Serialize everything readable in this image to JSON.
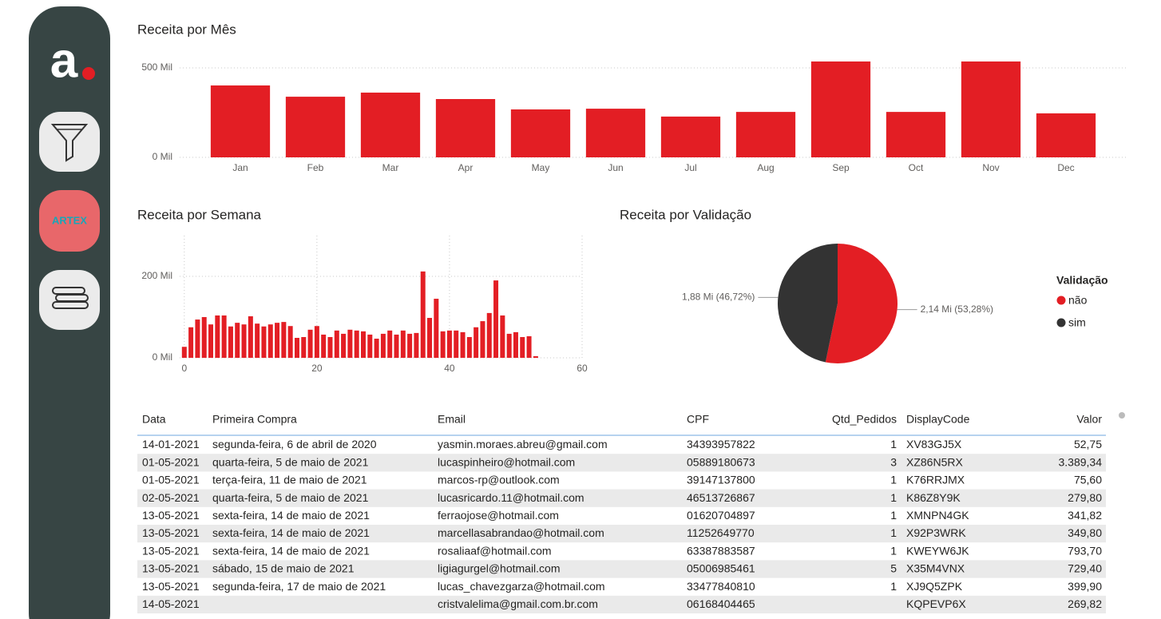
{
  "sidebar": {
    "logo": "a",
    "badge": "ARTEX"
  },
  "chart_data": [
    {
      "type": "bar",
      "title": "Receita por Mês",
      "color": "#e31e24",
      "grid": true,
      "categories": [
        "Jan",
        "Feb",
        "Mar",
        "Apr",
        "May",
        "Jun",
        "Jul",
        "Aug",
        "Sep",
        "Oct",
        "Nov",
        "Dec"
      ],
      "values": [
        402,
        339,
        362,
        326,
        268,
        272,
        228,
        254,
        536,
        254,
        536,
        246
      ],
      "ylim": [
        0,
        560
      ],
      "yticks": [
        {
          "value": 0,
          "label": "0 Mil"
        },
        {
          "value": 500,
          "label": "500 Mil"
        }
      ]
    },
    {
      "type": "bar",
      "title": "Receita por Semana",
      "color": "#e31e24",
      "grid": true,
      "x": [
        0,
        1,
        2,
        3,
        4,
        5,
        6,
        7,
        8,
        9,
        10,
        11,
        12,
        13,
        14,
        15,
        16,
        17,
        18,
        19,
        20,
        21,
        22,
        23,
        24,
        25,
        26,
        27,
        28,
        29,
        30,
        31,
        32,
        33,
        34,
        35,
        36,
        37,
        38,
        39,
        40,
        41,
        42,
        43,
        44,
        45,
        46,
        47,
        48,
        49,
        50,
        51,
        52,
        53
      ],
      "values": [
        27,
        75,
        94,
        100,
        82,
        104,
        104,
        77,
        86,
        82,
        102,
        84,
        77,
        82,
        86,
        88,
        78,
        49,
        51,
        69,
        78,
        57,
        51,
        67,
        59,
        69,
        67,
        65,
        57,
        47,
        59,
        67,
        57,
        67,
        59,
        61,
        212,
        98,
        145,
        65,
        67,
        67,
        63,
        51,
        75,
        90,
        110,
        190,
        104,
        59,
        63,
        51,
        53,
        4
      ],
      "xlim": [
        -0.7,
        60
      ],
      "xticks": [
        0,
        20,
        40,
        60
      ],
      "ylim": [
        0,
        300
      ],
      "yticks": [
        {
          "value": 0,
          "label": "0 Mil"
        },
        {
          "value": 200,
          "label": "200 Mil"
        }
      ]
    },
    {
      "type": "pie",
      "title": "Receita por Validação",
      "legend_title": "Validação",
      "legend": "right",
      "categories": [
        "não",
        "sim"
      ],
      "values": [
        2.14,
        1.88
      ],
      "value_labels": [
        "2,14 Mi (53,28%)",
        "1,88 Mi (46,72%)"
      ],
      "colors": [
        "#e31e24",
        "#333333"
      ]
    }
  ],
  "table": {
    "columns": [
      "Data",
      "Primeira Compra",
      "Email",
      "CPF",
      "Qtd_Pedidos",
      "DisplayCode",
      "Valor"
    ],
    "rows": [
      [
        "14-01-2021",
        "segunda-feira, 6 de abril de 2020",
        "yasmin.moraes.abreu@gmail.com",
        "34393957822",
        "1",
        "XV83GJ5X",
        "52,75"
      ],
      [
        "01-05-2021",
        "quarta-feira, 5 de maio de 2021",
        "lucaspinheiro@hotmail.com",
        "05889180673",
        "3",
        "XZ86N5RX",
        "3.389,34"
      ],
      [
        "01-05-2021",
        "terça-feira, 11 de maio de 2021",
        "marcos-rp@outlook.com",
        "39147137800",
        "1",
        "K76RRJMX",
        "75,60"
      ],
      [
        "02-05-2021",
        "quarta-feira, 5 de maio de 2021",
        "lucasricardo.11@hotmail.com",
        "46513726867",
        "1",
        "K86Z8Y9K",
        "279,80"
      ],
      [
        "13-05-2021",
        "sexta-feira, 14 de maio de 2021",
        "ferraojose@hotmail.com",
        "01620704897",
        "1",
        "XMNPN4GK",
        "341,82"
      ],
      [
        "13-05-2021",
        "sexta-feira, 14 de maio de 2021",
        "marcellasabrandao@hotmail.com",
        "11252649770",
        "1",
        "X92P3WRK",
        "349,80"
      ],
      [
        "13-05-2021",
        "sexta-feira, 14 de maio de 2021",
        "rosaliaaf@hotmail.com",
        "63387883587",
        "1",
        "KWEYW6JK",
        "793,70"
      ],
      [
        "13-05-2021",
        "sábado, 15 de maio de 2021",
        "ligiagurgel@hotmail.com",
        "05006985461",
        "5",
        "X35M4VNX",
        "729,40"
      ],
      [
        "13-05-2021",
        "segunda-feira, 17 de maio de 2021",
        "lucas_chavezgarza@hotmail.com",
        "33477840810",
        "1",
        "XJ9Q5ZPK",
        "399,90"
      ],
      [
        "14-05-2021",
        null,
        "cristvalelima@gmail.com.br.com",
        "06168404465",
        null,
        "KQPEVP6X",
        "269,82"
      ]
    ]
  }
}
